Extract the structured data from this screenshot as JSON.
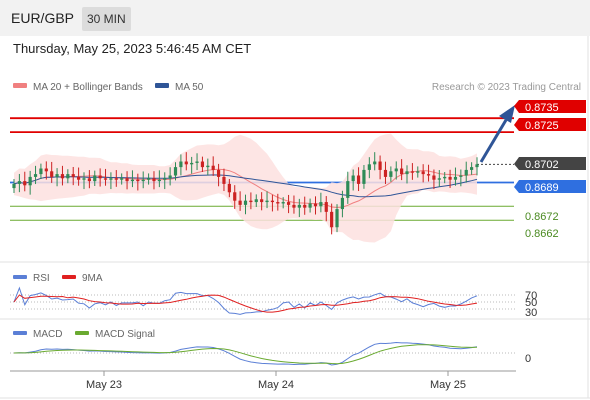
{
  "header": {
    "symbol": "EUR/GBP",
    "interval": "30 MIN"
  },
  "datetime": "Thursday, May 25, 2023 5:46:45 AM CET",
  "copyright": "Research © 2023 Trading Central",
  "colors": {
    "ma20": "#f08080",
    "bollinger": "#fde0df",
    "ma50": "#2f5597",
    "rsi": "#5b7fd6",
    "rsi_ma": "#e02020",
    "macd": "#5b7fd6",
    "macd_signal": "#6aaa30",
    "resistance": "#e00000",
    "support_blue": "#2f6fe0",
    "support_green": "#6aaa30",
    "bull": "#2e8b57",
    "bear": "#cc2222",
    "arrow": "#2f5597"
  },
  "chart_data": [
    {
      "type": "candlestick",
      "ylim": [
        0.8635,
        0.8748
      ],
      "x_tick_labels": [
        "May 23",
        "May 24",
        "May 25"
      ],
      "legend": [
        {
          "name": "MA 20 + Bollinger Bands",
          "color": "#f08080"
        },
        {
          "name": "MA 50",
          "color": "#2f5597"
        }
      ],
      "price_labels": [
        {
          "value": "0.8735",
          "style": "resistance"
        },
        {
          "value": "0.8725",
          "style": "resistance"
        },
        {
          "value": "0.8702",
          "style": "current"
        },
        {
          "value": "0.8689",
          "style": "support_blue"
        },
        {
          "value": "0.8672",
          "style": "support_green"
        },
        {
          "value": "0.8662",
          "style": "support_green"
        }
      ],
      "levels": [
        {
          "value": 0.8735,
          "kind": "resistance"
        },
        {
          "value": 0.8725,
          "kind": "resistance"
        },
        {
          "value": 0.8689,
          "kind": "support_blue"
        },
        {
          "value": 0.8672,
          "kind": "support_green"
        },
        {
          "value": 0.8662,
          "kind": "support_green"
        }
      ],
      "current_price": 0.8702,
      "forecast_arrow": {
        "from": 0.8702,
        "to": 0.8735
      },
      "close": [
        0.8688,
        0.869,
        0.8687,
        0.8693,
        0.8695,
        0.8699,
        0.8697,
        0.8693,
        0.8695,
        0.8692,
        0.8695,
        0.8693,
        0.8691,
        0.8692,
        0.869,
        0.8694,
        0.8692,
        0.8691,
        0.8692,
        0.8691,
        0.8692,
        0.869,
        0.8691,
        0.869,
        0.8691,
        0.8692,
        0.869,
        0.8691,
        0.8692,
        0.8694,
        0.87,
        0.8704,
        0.8702,
        0.8703,
        0.8704,
        0.87,
        0.8701,
        0.8698,
        0.8693,
        0.8688,
        0.8682,
        0.8676,
        0.8673,
        0.8676,
        0.8675,
        0.8677,
        0.8675,
        0.8676,
        0.8675,
        0.8674,
        0.8675,
        0.8673,
        0.8671,
        0.8673,
        0.8671,
        0.8674,
        0.8672,
        0.8675,
        0.8668,
        0.8657,
        0.867,
        0.8678,
        0.869,
        0.8694,
        0.8688,
        0.8698,
        0.8702,
        0.8704,
        0.8698,
        0.8693,
        0.8697,
        0.8699,
        0.8695,
        0.8697,
        0.8696,
        0.8697,
        0.8695,
        0.8694,
        0.8691,
        0.8692,
        0.8693,
        0.8691,
        0.8693,
        0.8694,
        0.8698,
        0.87,
        0.8702
      ]
    },
    {
      "type": "line",
      "title": "RSI",
      "series": [
        {
          "name": "RSI"
        },
        {
          "name": "9MA"
        }
      ],
      "levels": [
        "70",
        "50",
        "30"
      ]
    },
    {
      "type": "line",
      "title": "MACD",
      "series": [
        {
          "name": "MACD"
        },
        {
          "name": "MACD Signal"
        }
      ],
      "levels": [
        "0"
      ]
    }
  ]
}
